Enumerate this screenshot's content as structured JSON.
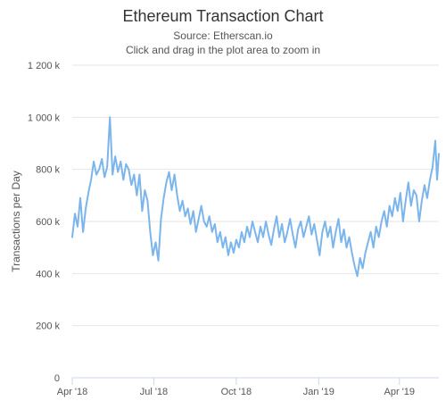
{
  "chart_data": {
    "type": "line",
    "title": "Ethereum Transaction Chart",
    "subtitle_source": "Source: Etherscan.io",
    "subtitle_hint": "Click and drag in the plot area to zoom in",
    "xlabel": "",
    "ylabel": "Transactions per Day",
    "x_ticks": [
      "Apr '18",
      "Jul '18",
      "Oct '18",
      "Jan '19",
      "Apr '19"
    ],
    "y_ticks": [
      "0",
      "200 k",
      "400 k",
      "600 k",
      "800 k",
      "1 000 k",
      "1 200 k"
    ],
    "ylim": [
      0,
      1200000
    ],
    "xlim": [
      "2018-04-01",
      "2019-05-15"
    ],
    "grid": "horizontal",
    "legend": "none",
    "line_color": "#7cb5ec",
    "series": [
      {
        "points": [
          [
            "2018-04-01",
            540000
          ],
          [
            "2018-04-04",
            630000
          ],
          [
            "2018-04-07",
            580000
          ],
          [
            "2018-04-10",
            690000
          ],
          [
            "2018-04-13",
            560000
          ],
          [
            "2018-04-16",
            650000
          ],
          [
            "2018-04-19",
            710000
          ],
          [
            "2018-04-22",
            760000
          ],
          [
            "2018-04-25",
            830000
          ],
          [
            "2018-04-28",
            780000
          ],
          [
            "2018-05-01",
            800000
          ],
          [
            "2018-05-04",
            840000
          ],
          [
            "2018-05-07",
            770000
          ],
          [
            "2018-05-10",
            810000
          ],
          [
            "2018-05-13",
            1000000
          ],
          [
            "2018-05-16",
            780000
          ],
          [
            "2018-05-19",
            850000
          ],
          [
            "2018-05-22",
            790000
          ],
          [
            "2018-05-25",
            830000
          ],
          [
            "2018-05-28",
            760000
          ],
          [
            "2018-05-31",
            820000
          ],
          [
            "2018-06-03",
            800000
          ],
          [
            "2018-06-06",
            740000
          ],
          [
            "2018-06-09",
            780000
          ],
          [
            "2018-06-12",
            700000
          ],
          [
            "2018-06-15",
            780000
          ],
          [
            "2018-06-18",
            640000
          ],
          [
            "2018-06-21",
            720000
          ],
          [
            "2018-06-24",
            680000
          ],
          [
            "2018-06-27",
            560000
          ],
          [
            "2018-06-30",
            470000
          ],
          [
            "2018-07-03",
            520000
          ],
          [
            "2018-07-06",
            450000
          ],
          [
            "2018-07-09",
            610000
          ],
          [
            "2018-07-12",
            690000
          ],
          [
            "2018-07-15",
            750000
          ],
          [
            "2018-07-18",
            790000
          ],
          [
            "2018-07-21",
            720000
          ],
          [
            "2018-07-24",
            780000
          ],
          [
            "2018-07-27",
            700000
          ],
          [
            "2018-07-30",
            640000
          ],
          [
            "2018-08-02",
            680000
          ],
          [
            "2018-08-05",
            620000
          ],
          [
            "2018-08-08",
            650000
          ],
          [
            "2018-08-11",
            590000
          ],
          [
            "2018-08-14",
            640000
          ],
          [
            "2018-08-17",
            560000
          ],
          [
            "2018-08-20",
            610000
          ],
          [
            "2018-08-23",
            660000
          ],
          [
            "2018-08-26",
            600000
          ],
          [
            "2018-08-29",
            580000
          ],
          [
            "2018-09-01",
            620000
          ],
          [
            "2018-09-04",
            560000
          ],
          [
            "2018-09-07",
            590000
          ],
          [
            "2018-09-10",
            520000
          ],
          [
            "2018-09-13",
            560000
          ],
          [
            "2018-09-16",
            500000
          ],
          [
            "2018-09-19",
            540000
          ],
          [
            "2018-09-22",
            470000
          ],
          [
            "2018-09-25",
            520000
          ],
          [
            "2018-09-28",
            480000
          ],
          [
            "2018-10-01",
            530000
          ],
          [
            "2018-10-04",
            500000
          ],
          [
            "2018-10-07",
            560000
          ],
          [
            "2018-10-10",
            520000
          ],
          [
            "2018-10-13",
            580000
          ],
          [
            "2018-10-16",
            540000
          ],
          [
            "2018-10-19",
            600000
          ],
          [
            "2018-10-22",
            560000
          ],
          [
            "2018-10-25",
            520000
          ],
          [
            "2018-10-28",
            580000
          ],
          [
            "2018-10-31",
            540000
          ],
          [
            "2018-11-03",
            600000
          ],
          [
            "2018-11-06",
            550000
          ],
          [
            "2018-11-09",
            510000
          ],
          [
            "2018-11-12",
            570000
          ],
          [
            "2018-11-15",
            620000
          ],
          [
            "2018-11-18",
            540000
          ],
          [
            "2018-11-21",
            590000
          ],
          [
            "2018-11-24",
            520000
          ],
          [
            "2018-11-27",
            560000
          ],
          [
            "2018-11-30",
            610000
          ],
          [
            "2018-12-03",
            550000
          ],
          [
            "2018-12-06",
            500000
          ],
          [
            "2018-12-09",
            570000
          ],
          [
            "2018-12-12",
            600000
          ],
          [
            "2018-12-15",
            540000
          ],
          [
            "2018-12-18",
            580000
          ],
          [
            "2018-12-21",
            620000
          ],
          [
            "2018-12-24",
            550000
          ],
          [
            "2018-12-27",
            590000
          ],
          [
            "2018-12-30",
            530000
          ],
          [
            "2019-01-02",
            470000
          ],
          [
            "2019-01-05",
            560000
          ],
          [
            "2019-01-08",
            600000
          ],
          [
            "2019-01-11",
            540000
          ],
          [
            "2019-01-14",
            580000
          ],
          [
            "2019-01-17",
            500000
          ],
          [
            "2019-01-20",
            560000
          ],
          [
            "2019-01-23",
            610000
          ],
          [
            "2019-01-26",
            520000
          ],
          [
            "2019-01-29",
            570000
          ],
          [
            "2019-02-01",
            500000
          ],
          [
            "2019-02-04",
            540000
          ],
          [
            "2019-02-07",
            480000
          ],
          [
            "2019-02-10",
            430000
          ],
          [
            "2019-02-13",
            390000
          ],
          [
            "2019-02-16",
            460000
          ],
          [
            "2019-02-19",
            420000
          ],
          [
            "2019-02-22",
            480000
          ],
          [
            "2019-02-25",
            520000
          ],
          [
            "2019-02-28",
            560000
          ],
          [
            "2019-03-03",
            500000
          ],
          [
            "2019-03-06",
            580000
          ],
          [
            "2019-03-09",
            540000
          ],
          [
            "2019-03-12",
            600000
          ],
          [
            "2019-03-15",
            640000
          ],
          [
            "2019-03-18",
            580000
          ],
          [
            "2019-03-21",
            660000
          ],
          [
            "2019-03-24",
            620000
          ],
          [
            "2019-03-27",
            690000
          ],
          [
            "2019-03-30",
            640000
          ],
          [
            "2019-04-02",
            710000
          ],
          [
            "2019-04-05",
            600000
          ],
          [
            "2019-04-08",
            680000
          ],
          [
            "2019-04-11",
            750000
          ],
          [
            "2019-04-14",
            660000
          ],
          [
            "2019-04-17",
            720000
          ],
          [
            "2019-04-20",
            700000
          ],
          [
            "2019-04-23",
            600000
          ],
          [
            "2019-04-26",
            680000
          ],
          [
            "2019-04-29",
            740000
          ],
          [
            "2019-05-02",
            690000
          ],
          [
            "2019-05-05",
            760000
          ],
          [
            "2019-05-08",
            810000
          ],
          [
            "2019-05-11",
            910000
          ],
          [
            "2019-05-13",
            760000
          ],
          [
            "2019-05-15",
            860000
          ]
        ]
      }
    ]
  }
}
